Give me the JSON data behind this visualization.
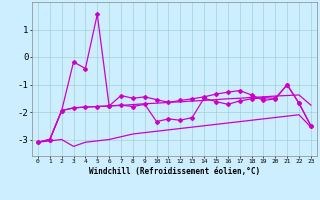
{
  "xlabel": "Windchill (Refroidissement éolien,°C)",
  "background_color": "#cceeff",
  "line_color": "#cc00cc",
  "x": [
    0,
    1,
    2,
    3,
    4,
    5,
    6,
    7,
    8,
    9,
    10,
    11,
    12,
    13,
    14,
    15,
    16,
    17,
    18,
    19,
    20,
    21,
    22,
    23
  ],
  "series_bottom": [
    -3.1,
    -3.05,
    -3.0,
    -3.25,
    -3.1,
    -3.05,
    -3.0,
    -2.9,
    -2.8,
    -2.75,
    -2.7,
    -2.65,
    -2.6,
    -2.55,
    -2.5,
    -2.45,
    -2.4,
    -2.35,
    -2.3,
    -2.25,
    -2.2,
    -2.15,
    -2.1,
    -2.55
  ],
  "series_mid_smooth": [
    -3.1,
    -3.0,
    -1.95,
    -1.85,
    -1.82,
    -1.8,
    -1.78,
    -1.76,
    -1.73,
    -1.7,
    -1.68,
    -1.65,
    -1.63,
    -1.6,
    -1.58,
    -1.55,
    -1.52,
    -1.5,
    -1.47,
    -1.45,
    -1.42,
    -1.4,
    -1.38,
    -1.75
  ],
  "series_zigzag1": [
    -3.1,
    -3.0,
    -1.95,
    -1.85,
    -1.82,
    -1.8,
    -1.78,
    -1.75,
    -1.8,
    -1.72,
    -2.35,
    -2.25,
    -2.3,
    -2.2,
    -1.5,
    -1.62,
    -1.72,
    -1.6,
    -1.52,
    -1.48,
    -1.5,
    -1.02,
    -1.68,
    -2.5
  ],
  "series_zigzag2": [
    -3.1,
    -3.0,
    -1.95,
    -0.18,
    -0.42,
    1.55,
    -1.78,
    -1.4,
    -1.5,
    -1.45,
    -1.55,
    -1.65,
    -1.58,
    -1.52,
    -1.45,
    -1.35,
    -1.28,
    -1.22,
    -1.38,
    -1.58,
    -1.52,
    -1.0,
    -1.68,
    -2.5
  ],
  "ylim": [
    -3.6,
    2.0
  ],
  "yticks": [
    -3,
    -2,
    -1,
    0,
    1
  ],
  "grid_color": "#99cccc",
  "grid_alpha": 0.7
}
